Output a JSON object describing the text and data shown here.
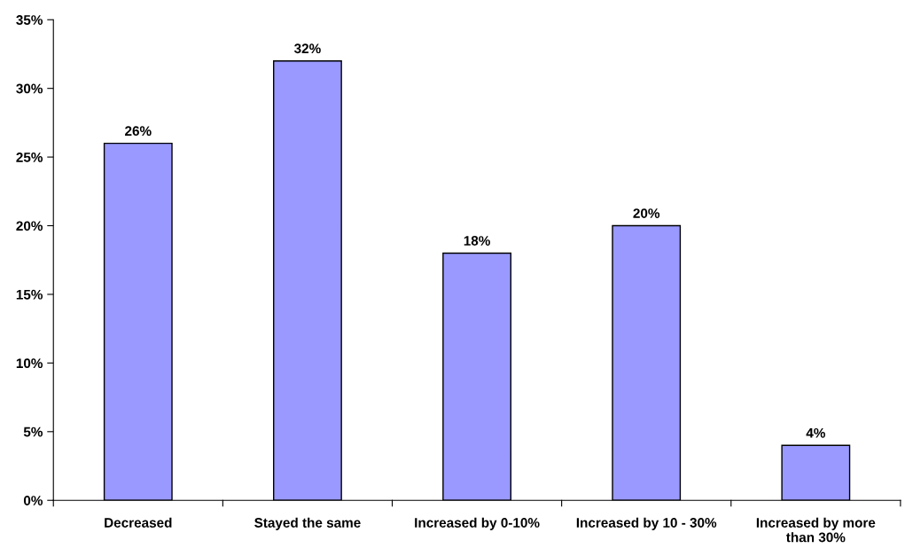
{
  "chart_data": {
    "type": "bar",
    "categories": [
      "Decreased",
      "Stayed the same",
      "Increased by 0-10%",
      "Increased by 10 - 30%",
      "Increased by more\nthan 30%"
    ],
    "values": [
      26,
      32,
      18,
      20,
      4
    ],
    "value_labels": [
      "26%",
      "32%",
      "18%",
      "20%",
      "4%"
    ],
    "color": "#9999ff",
    "ylim": [
      0,
      35
    ],
    "yticks": [
      {
        "value": 0,
        "label": "0%"
      },
      {
        "value": 5,
        "label": "5%"
      },
      {
        "value": 10,
        "label": "10%"
      },
      {
        "value": 15,
        "label": "15%"
      },
      {
        "value": 20,
        "label": "20%"
      },
      {
        "value": 25,
        "label": "25%"
      },
      {
        "value": 30,
        "label": "30%"
      },
      {
        "value": 35,
        "label": "35%"
      }
    ],
    "grid": false,
    "legend": false
  }
}
